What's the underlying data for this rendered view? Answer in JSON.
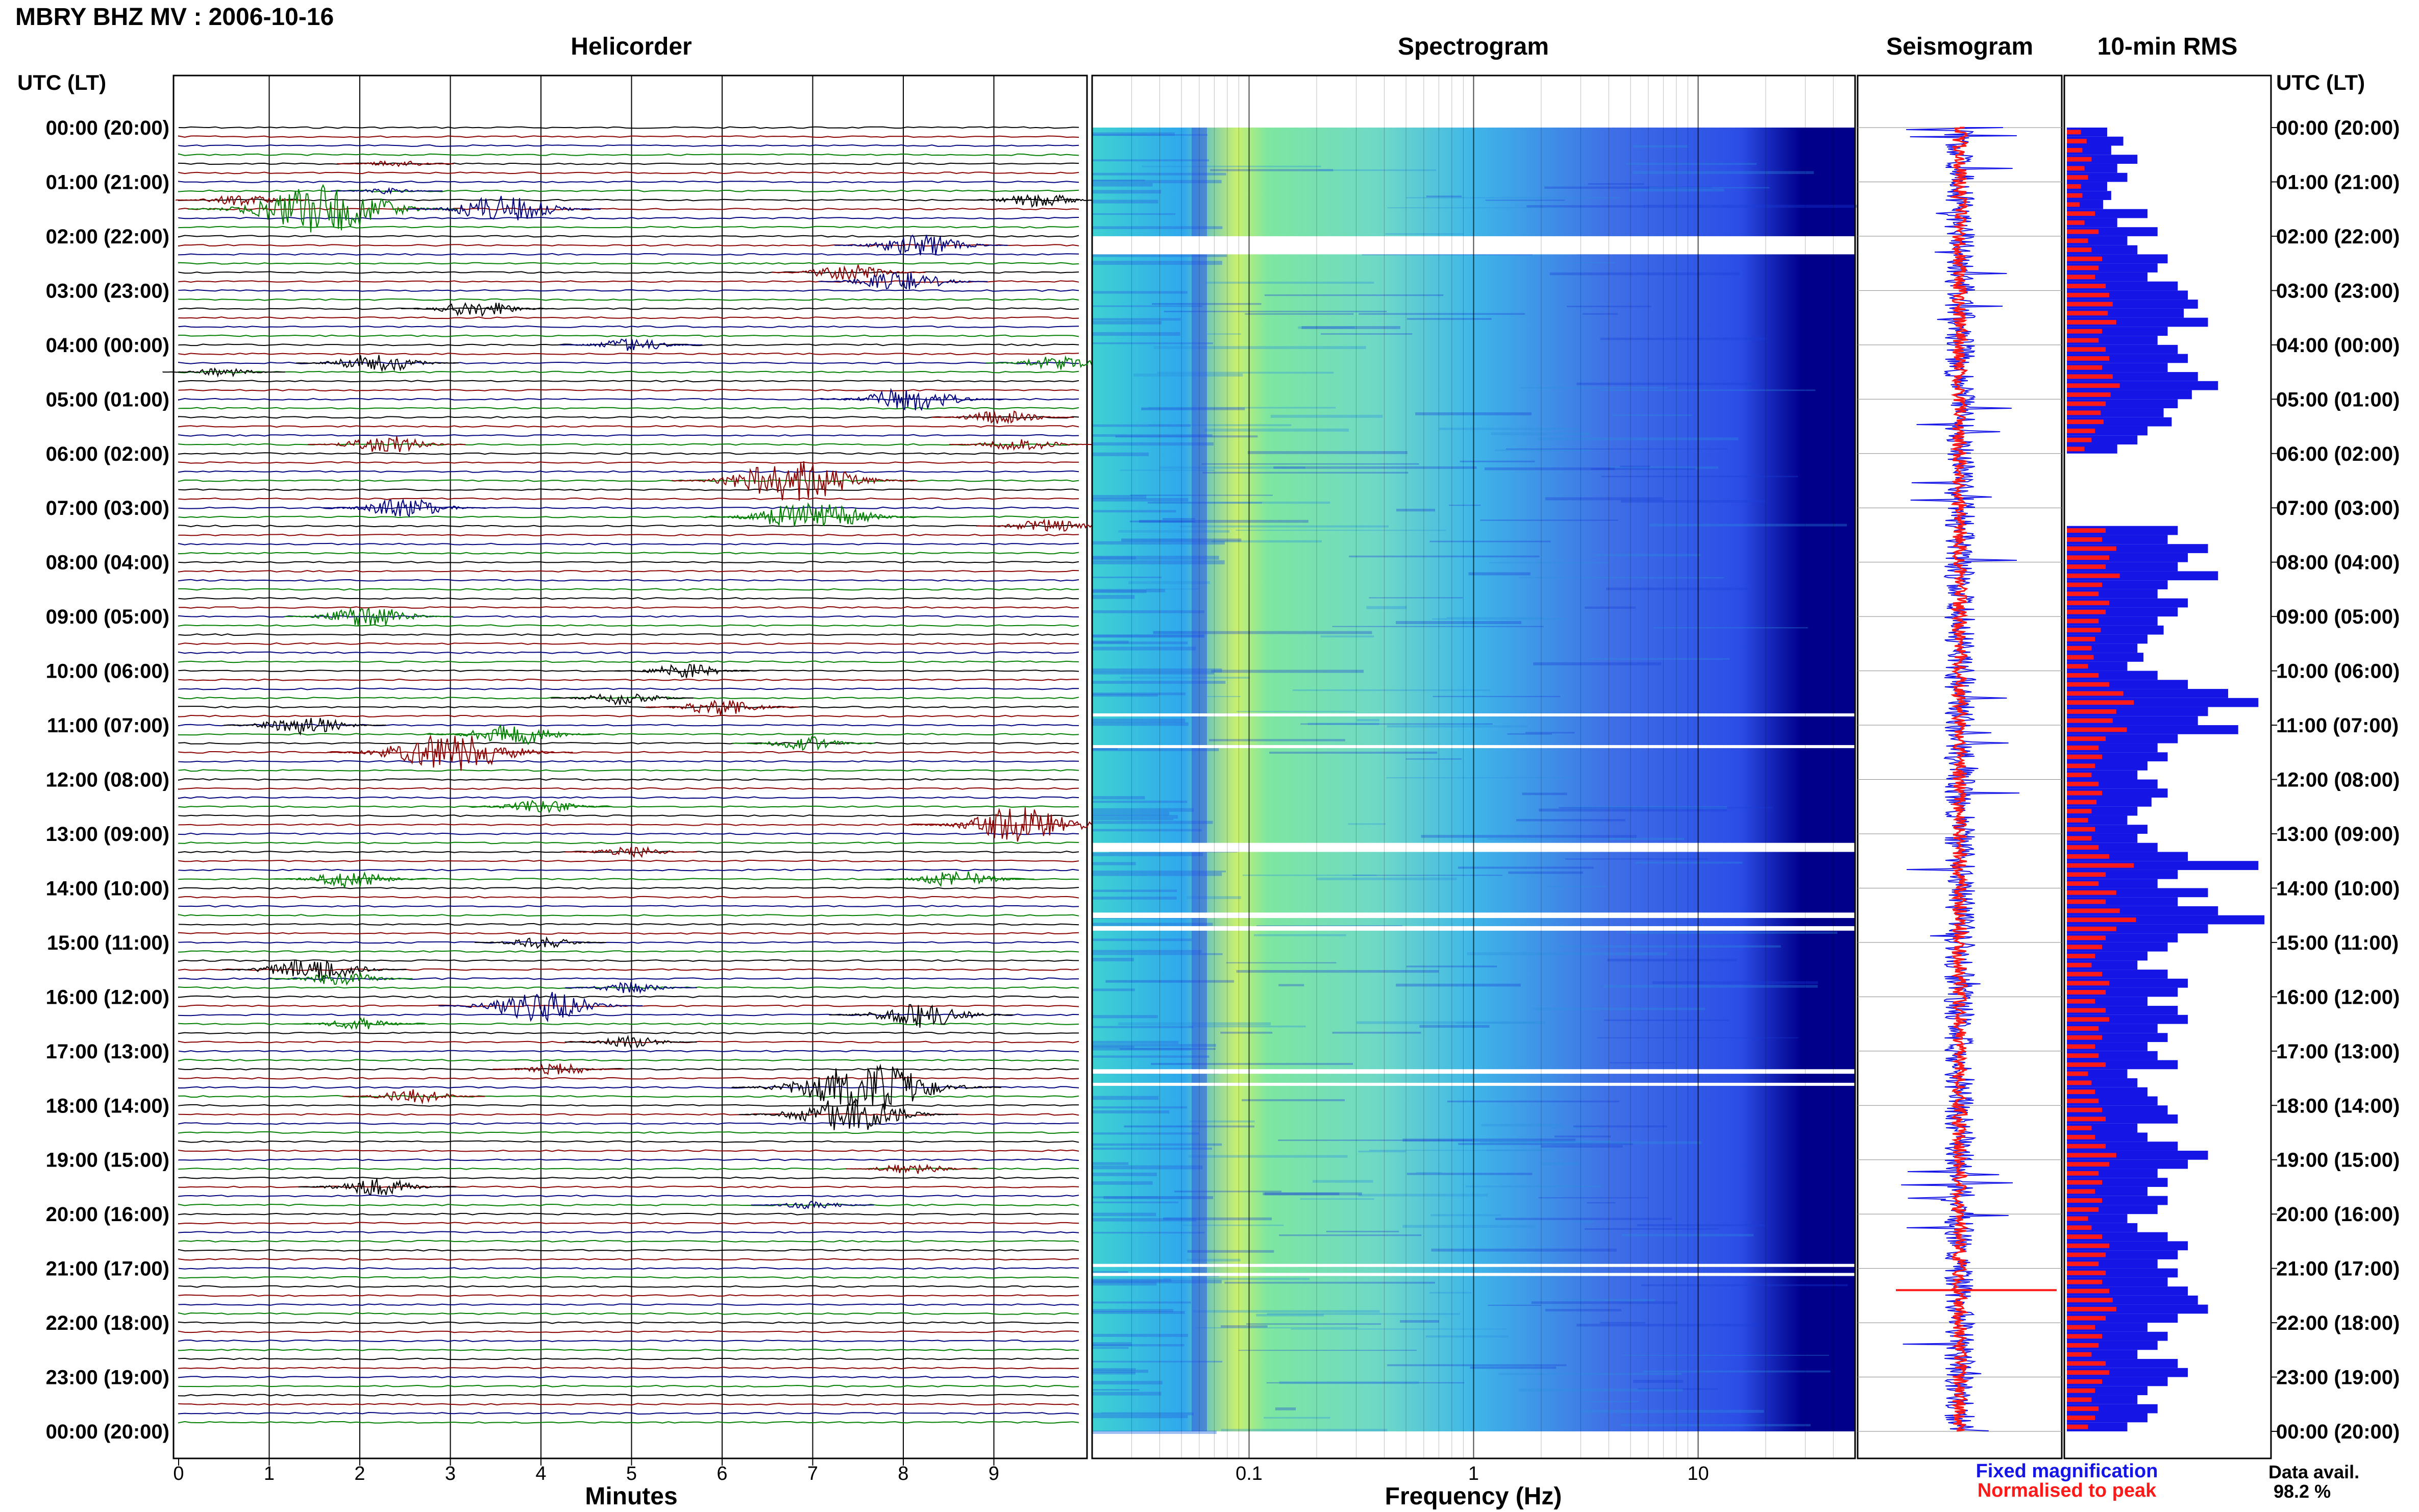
{
  "header": {
    "title": "MBRY BHZ MV : 2006-10-16"
  },
  "panels": {
    "helicorder": "Helicorder",
    "spectrogram": "Spectrogram",
    "seismogram": "Seismogram",
    "rms": "10-min RMS"
  },
  "axes": {
    "time_header_left": "UTC (LT)",
    "time_header_right": "UTC (LT)",
    "time_ticks": [
      "00:00 (20:00)",
      "01:00 (21:00)",
      "02:00 (22:00)",
      "03:00 (23:00)",
      "04:00 (00:00)",
      "05:00 (01:00)",
      "06:00 (02:00)",
      "07:00 (03:00)",
      "08:00 (04:00)",
      "09:00 (05:00)",
      "10:00 (06:00)",
      "11:00 (07:00)",
      "12:00 (08:00)",
      "13:00 (09:00)",
      "14:00 (10:00)",
      "15:00 (11:00)",
      "16:00 (12:00)",
      "17:00 (13:00)",
      "18:00 (14:00)",
      "19:00 (15:00)",
      "20:00 (16:00)",
      "21:00 (17:00)",
      "22:00 (18:00)",
      "23:00 (19:00)",
      "00:00 (20:00)"
    ],
    "minutes_label": "Minutes",
    "minutes_ticks": [
      "0",
      "1",
      "2",
      "3",
      "4",
      "5",
      "6",
      "7",
      "8",
      "9"
    ],
    "frequency_label": "Frequency (Hz)",
    "frequency_ticks": [
      "0.1",
      "1",
      "10"
    ]
  },
  "legend": {
    "fixed": "Fixed magnification",
    "normalised": "Normalised to peak",
    "fixed_color": "#1515e6",
    "normalised_color": "#ff1a1a"
  },
  "availability": {
    "label": "Data avail.",
    "value": "98.2 %"
  },
  "colors": {
    "helicorder_traces": [
      "#000000",
      "#8b0000",
      "#00007f",
      "#007f00"
    ],
    "spectrogram": [
      "#00008b",
      "#2b4de6",
      "#2fa8ee",
      "#3fd2d2",
      "#7ee6a0",
      "#c8f070"
    ],
    "rms_fixed": "#1515e6",
    "rms_normalised": "#ff1a1a"
  },
  "chart_data": [
    {
      "type": "helicorder",
      "title": "Helicorder",
      "xlabel": "Minutes",
      "x_range": [
        0,
        10
      ],
      "rows": 144,
      "row_minutes": 10,
      "time_range_utc": [
        "00:00",
        "24:00"
      ],
      "events": [
        {
          "row": 4,
          "minute": 2.4,
          "amp": 0.5,
          "color": "#8b0000"
        },
        {
          "row": 7,
          "minute": 2.3,
          "amp": 0.4,
          "color": "#00007f"
        },
        {
          "row": 8,
          "minute": 0.7,
          "amp": 0.8,
          "color": "#8b0000"
        },
        {
          "row": 9,
          "minute": 1.6,
          "amp": 3.5,
          "color": "#007f00"
        },
        {
          "row": 9,
          "minute": 3.6,
          "amp": 2.0,
          "color": "#00007f"
        },
        {
          "row": 8,
          "minute": 9.5,
          "amp": 1.0,
          "color": "#000000"
        },
        {
          "row": 13,
          "minute": 8.2,
          "amp": 1.6,
          "color": "#00007f"
        },
        {
          "row": 16,
          "minute": 7.4,
          "amp": 1.2,
          "color": "#8b0000"
        },
        {
          "row": 17,
          "minute": 8.0,
          "amp": 1.5,
          "color": "#00007f"
        },
        {
          "row": 20,
          "minute": 3.3,
          "amp": 1.2,
          "color": "#000000"
        },
        {
          "row": 24,
          "minute": 5.0,
          "amp": 1.0,
          "color": "#00007f"
        },
        {
          "row": 26,
          "minute": 2.2,
          "amp": 1.4,
          "color": "#000000"
        },
        {
          "row": 27,
          "minute": 0.5,
          "amp": 0.6,
          "color": "#000000"
        },
        {
          "row": 26,
          "minute": 9.7,
          "amp": 1.0,
          "color": "#007f00"
        },
        {
          "row": 30,
          "minute": 8.1,
          "amp": 1.8,
          "color": "#00007f"
        },
        {
          "row": 32,
          "minute": 9.1,
          "amp": 1.0,
          "color": "#8b0000"
        },
        {
          "row": 35,
          "minute": 2.3,
          "amp": 1.3,
          "color": "#8b0000"
        },
        {
          "row": 35,
          "minute": 9.3,
          "amp": 1.0,
          "color": "#8b0000"
        },
        {
          "row": 39,
          "minute": 6.8,
          "amp": 3.0,
          "color": "#8b0000"
        },
        {
          "row": 42,
          "minute": 2.5,
          "amp": 1.4,
          "color": "#00007f"
        },
        {
          "row": 43,
          "minute": 7.0,
          "amp": 2.4,
          "color": "#007f00"
        },
        {
          "row": 44,
          "minute": 9.6,
          "amp": 1.0,
          "color": "#8b0000"
        },
        {
          "row": 54,
          "minute": 2.1,
          "amp": 1.5,
          "color": "#007f00"
        },
        {
          "row": 60,
          "minute": 5.6,
          "amp": 1.0,
          "color": "#000000"
        },
        {
          "row": 63,
          "minute": 4.9,
          "amp": 1.0,
          "color": "#000000"
        },
        {
          "row": 64,
          "minute": 6.0,
          "amp": 1.2,
          "color": "#8b0000"
        },
        {
          "row": 66,
          "minute": 1.4,
          "amp": 1.4,
          "color": "#000000"
        },
        {
          "row": 67,
          "minute": 3.7,
          "amp": 1.6,
          "color": "#007f00"
        },
        {
          "row": 69,
          "minute": 3.0,
          "amp": 3.0,
          "color": "#8b0000"
        },
        {
          "row": 68,
          "minute": 6.9,
          "amp": 1.0,
          "color": "#007f00"
        },
        {
          "row": 75,
          "minute": 4.0,
          "amp": 1.0,
          "color": "#007f00"
        },
        {
          "row": 77,
          "minute": 9.3,
          "amp": 2.6,
          "color": "#8b0000"
        },
        {
          "row": 80,
          "minute": 5.0,
          "amp": 0.8,
          "color": "#8b0000"
        },
        {
          "row": 83,
          "minute": 1.9,
          "amp": 1.2,
          "color": "#007f00"
        },
        {
          "row": 83,
          "minute": 8.6,
          "amp": 1.2,
          "color": "#007f00"
        },
        {
          "row": 90,
          "minute": 4.0,
          "amp": 0.8,
          "color": "#000000"
        },
        {
          "row": 93,
          "minute": 1.5,
          "amp": 1.8,
          "color": "#000000"
        },
        {
          "row": 94,
          "minute": 1.8,
          "amp": 1.0,
          "color": "#007f00"
        },
        {
          "row": 95,
          "minute": 5.0,
          "amp": 0.8,
          "color": "#00007f"
        },
        {
          "row": 97,
          "minute": 4.0,
          "amp": 2.2,
          "color": "#00007f"
        },
        {
          "row": 98,
          "minute": 8.2,
          "amp": 1.8,
          "color": "#000000"
        },
        {
          "row": 99,
          "minute": 2.0,
          "amp": 0.8,
          "color": "#007f00"
        },
        {
          "row": 101,
          "minute": 5.0,
          "amp": 0.8,
          "color": "#000000"
        },
        {
          "row": 104,
          "minute": 4.2,
          "amp": 0.8,
          "color": "#8b0000"
        },
        {
          "row": 106,
          "minute": 7.6,
          "amp": 3.5,
          "color": "#000000"
        },
        {
          "row": 107,
          "minute": 2.6,
          "amp": 1.0,
          "color": "#8b0000"
        },
        {
          "row": 109,
          "minute": 7.4,
          "amp": 2.5,
          "color": "#000000"
        },
        {
          "row": 115,
          "minute": 8.1,
          "amp": 0.8,
          "color": "#8b0000"
        },
        {
          "row": 117,
          "minute": 2.2,
          "amp": 1.3,
          "color": "#000000"
        },
        {
          "row": 119,
          "minute": 7.0,
          "amp": 0.6,
          "color": "#00007f"
        }
      ]
    },
    {
      "type": "heatmap",
      "title": "Spectrogram",
      "xlabel": "Frequency (Hz)",
      "x_scale": "log",
      "x_range_hz": [
        0.02,
        50
      ],
      "x_ticks": [
        0.1,
        1,
        10
      ],
      "time_range_utc": [
        "00:00",
        "24:00"
      ],
      "gaps_utc": [
        [
          "02:00",
          "02:20"
        ],
        [
          "10:47",
          "10:50"
        ],
        [
          "11:22",
          "11:25"
        ],
        [
          "13:10",
          "13:20"
        ],
        [
          "14:27",
          "14:33"
        ],
        [
          "14:42",
          "14:47"
        ],
        [
          "17:20",
          "17:25"
        ],
        [
          "17:35",
          "17:38"
        ],
        [
          "20:55",
          "20:58"
        ],
        [
          "21:05",
          "21:08"
        ]
      ]
    },
    {
      "type": "line",
      "title": "Seismogram",
      "series": [
        {
          "name": "Fixed magnification",
          "color": "#1515e6"
        },
        {
          "name": "Normalised to peak",
          "color": "#ff1a1a"
        }
      ],
      "time_range_utc": [
        "00:00",
        "24:00"
      ]
    },
    {
      "type": "bar",
      "title": "10-min RMS",
      "orientation": "horizontal",
      "bin_minutes": 10,
      "x_range": [
        0,
        1
      ],
      "series": [
        {
          "name": "Fixed magnification",
          "color": "#1515e6",
          "values": [
            0.2,
            0.28,
            0.22,
            0.35,
            0.25,
            0.3,
            0.2,
            0.22,
            0.18,
            0.4,
            0.25,
            0.45,
            0.3,
            0.35,
            0.5,
            0.45,
            0.4,
            0.55,
            0.6,
            0.65,
            0.58,
            0.7,
            0.5,
            0.45,
            0.55,
            0.6,
            0.5,
            0.65,
            0.75,
            0.62,
            0.55,
            0.48,
            0.52,
            0.4,
            0.35,
            0.25,
            0.0,
            0.0,
            0.0,
            0.0,
            0.0,
            0.0,
            0.0,
            0.0,
            0.55,
            0.5,
            0.7,
            0.6,
            0.55,
            0.75,
            0.5,
            0.45,
            0.6,
            0.55,
            0.45,
            0.48,
            0.4,
            0.35,
            0.38,
            0.3,
            0.45,
            0.6,
            0.8,
            0.95,
            0.7,
            0.65,
            0.85,
            0.55,
            0.45,
            0.5,
            0.4,
            0.35,
            0.45,
            0.5,
            0.42,
            0.35,
            0.3,
            0.4,
            0.35,
            0.45,
            0.6,
            0.95,
            0.55,
            0.45,
            0.7,
            0.55,
            0.75,
            0.98,
            0.7,
            0.55,
            0.5,
            0.4,
            0.35,
            0.5,
            0.6,
            0.55,
            0.4,
            0.55,
            0.6,
            0.45,
            0.5,
            0.4,
            0.45,
            0.55,
            0.3,
            0.35,
            0.4,
            0.45,
            0.5,
            0.55,
            0.35,
            0.4,
            0.55,
            0.7,
            0.6,
            0.45,
            0.5,
            0.4,
            0.5,
            0.45,
            0.3,
            0.35,
            0.5,
            0.6,
            0.55,
            0.45,
            0.55,
            0.5,
            0.6,
            0.65,
            0.7,
            0.55,
            0.4,
            0.5,
            0.45,
            0.35,
            0.55,
            0.6,
            0.5,
            0.4,
            0.35,
            0.45,
            0.4,
            0.3
          ],
          "note_dummy": null
        },
        {
          "name": "Normalised to peak",
          "color": "#ff1a1a"
        }
      ]
    }
  ]
}
